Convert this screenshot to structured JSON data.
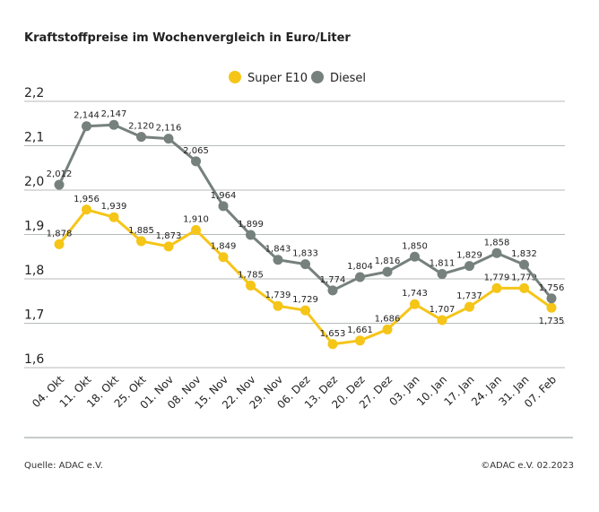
{
  "title": "Kraftstoffpreise im Wochenvergleich in Euro/Liter",
  "source": "Quelle: ADAC e.V.",
  "copyright": "©ADAC e.V. 02.2023",
  "chart_data": {
    "type": "line",
    "title": "Kraftstoffpreise im Wochenvergleich in Euro/Liter",
    "categories": [
      "04. Okt",
      "11. Okt",
      "18. Okt",
      "25. Okt",
      "01. Nov",
      "08. Nov",
      "15. Nov",
      "22. Nov",
      "29. Nov",
      "06. Dez",
      "13. Dez",
      "20. Dez",
      "27. Dez",
      "03. Jan",
      "10. Jan",
      "17. Jan",
      "24. Jan",
      "31. Jan",
      "07. Feb"
    ],
    "ylim": [
      1.6,
      2.2
    ],
    "yticks": [
      "2,2",
      "2,1",
      "2,0",
      "1,9",
      "1,8",
      "1,7",
      "1,6"
    ],
    "ytick_values": [
      2.2,
      2.1,
      2.0,
      1.9,
      1.8,
      1.7,
      1.6
    ],
    "grid": true,
    "legend": "top-center",
    "series": [
      {
        "name": "Super E10",
        "color": "#f5c518",
        "values": [
          1.878,
          1.956,
          1.939,
          1.885,
          1.873,
          1.91,
          1.849,
          1.785,
          1.739,
          1.729,
          1.653,
          1.661,
          1.686,
          1.743,
          1.707,
          1.737,
          1.779,
          1.779,
          1.735
        ],
        "labels": [
          "1,878",
          "1,956",
          "1,939",
          "1,885",
          "1,873",
          "1,910",
          "1,849",
          "1,785",
          "1,739",
          "1,729",
          "1,653",
          "1,661",
          "1,686",
          "1,743",
          "1,707",
          "1,737",
          "1,779",
          "1,779",
          "1,735"
        ]
      },
      {
        "name": "Diesel",
        "color": "#76817d",
        "values": [
          2.012,
          2.144,
          2.147,
          2.12,
          2.116,
          2.065,
          1.964,
          1.899,
          1.843,
          1.833,
          1.774,
          1.804,
          1.816,
          1.85,
          1.811,
          1.829,
          1.858,
          1.832,
          1.756
        ],
        "labels": [
          "2,012",
          "2,144",
          "2,147",
          "2,120",
          "2,116",
          "2,065",
          "1,964",
          "1,899",
          "1,843",
          "1,833",
          "1,774",
          "1,804",
          "1,816",
          "1,850",
          "1,811",
          "1,829",
          "1,858",
          "1,832",
          "1,756"
        ]
      }
    ]
  }
}
